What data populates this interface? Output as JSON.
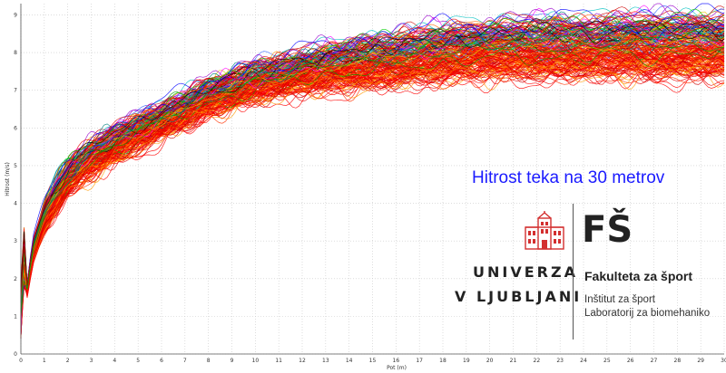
{
  "chart_data": {
    "type": "line",
    "xlabel": "Pot (m)",
    "ylabel": "Hitrost (m/s)",
    "xlim": [
      0,
      30
    ],
    "ylim": [
      0,
      9.3
    ],
    "x_ticks": [
      "0",
      "1",
      "2",
      "3",
      "4",
      "5",
      "6",
      "7",
      "8",
      "9",
      "10",
      "11",
      "12",
      "13",
      "14",
      "15",
      "16",
      "17",
      "18",
      "19",
      "20",
      "21",
      "22",
      "23",
      "24",
      "25",
      "26",
      "27",
      "28",
      "29",
      "30"
    ],
    "y_ticks": [
      "0",
      "1",
      "2",
      "3",
      "4",
      "5",
      "6",
      "7",
      "8",
      "9"
    ],
    "grid": true,
    "series_count": 200,
    "series_colors": [
      "#ff0000",
      "#e60000",
      "#ff3300",
      "#ff6600",
      "#cc0000",
      "#ff9900",
      "#e8c200",
      "#00cc00",
      "#00a000",
      "#00bfbf",
      "#008080",
      "#0000ff",
      "#3366ff",
      "#9900cc",
      "#ff00ff",
      "#000000"
    ],
    "typical_curve": {
      "x": [
        0,
        0.5,
        1,
        2,
        3,
        4,
        5,
        6,
        7,
        8,
        10,
        12,
        14,
        16,
        18,
        20,
        22,
        24,
        26,
        28,
        30
      ],
      "y_slower": [
        0.5,
        2.4,
        3.3,
        4.3,
        4.8,
        5.2,
        5.5,
        5.8,
        6.1,
        6.4,
        6.8,
        7.0,
        7.1,
        7.2,
        7.3,
        7.4,
        7.4,
        7.4,
        7.4,
        7.4,
        7.4
      ],
      "y_faster": [
        0.5,
        3.0,
        4.0,
        5.1,
        5.6,
        6.0,
        6.3,
        6.6,
        6.9,
        7.2,
        7.7,
        8.0,
        8.3,
        8.5,
        8.7,
        8.8,
        8.9,
        8.9,
        9.0,
        9.0,
        9.0
      ]
    }
  },
  "title": "Hitrost teka na 30 metrov",
  "logo": {
    "university_line1": "UNIVERZA",
    "university_line2": "V LJUBLJANI",
    "faculty_mark": "FŠ",
    "faculty_name": "Fakulteta za šport",
    "institute": "Inštitut za šport",
    "laboratory": "Laboratorij za biomehaniko"
  }
}
